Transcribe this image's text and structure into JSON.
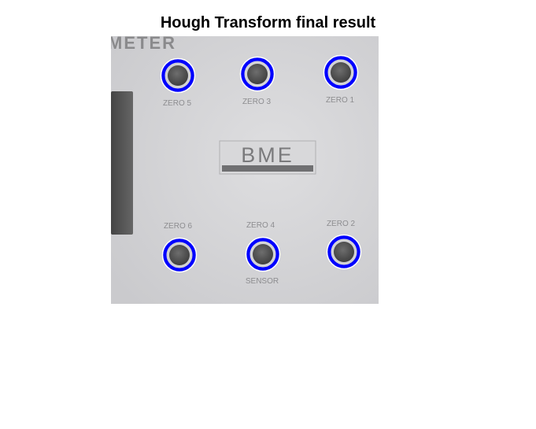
{
  "figure": {
    "title": "Hough Transform final result"
  },
  "photo": {
    "panel_text": "METER",
    "logo_text": "BME",
    "knob_labels": [
      "ZERO 5",
      "ZERO 3",
      "ZERO 1",
      "ZERO 6",
      "ZERO 4",
      "ZERO 2"
    ],
    "sensor_label": "SENSOR"
  },
  "colors": {
    "circle_highlight": "#0000ff",
    "circle_outline": "#ffffff",
    "panel_background": "#d6d6d8",
    "knob": "#5a5a5a"
  },
  "detections": {
    "count": 6
  }
}
